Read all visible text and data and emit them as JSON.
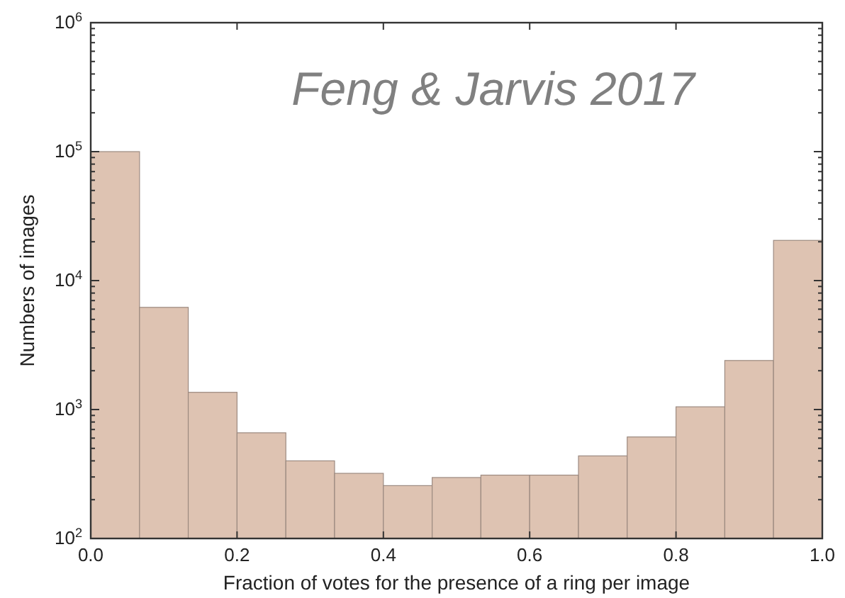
{
  "chart_data": {
    "type": "histogram",
    "xlabel": "Fraction of votes for the presence of a ring per image",
    "ylabel": "Numbers of images",
    "annotations": [
      "Feng & Jarvis 2017"
    ],
    "bins": [
      0,
      0.0667,
      0.1333,
      0.2,
      0.2667,
      0.3333,
      0.4,
      0.4667,
      0.5333,
      0.6,
      0.6667,
      0.7333,
      0.8,
      0.8667,
      0.9333,
      1
    ],
    "values": [
      100000,
      6200,
      1360,
      660,
      400,
      320,
      257,
      297,
      310,
      310,
      437,
      613,
      1050,
      2400,
      20500
    ],
    "color": "#dec3b2",
    "log": true,
    "grid": false,
    "xlim": [
      0,
      1
    ],
    "xticks": [
      {
        "value": 0,
        "label": "0.0"
      },
      0.2,
      0.4,
      0.6,
      0.8,
      {
        "value": 1,
        "label": "1.0"
      }
    ],
    "ylim": [
      100,
      1000000
    ],
    "yticks": [
      {
        "value": 100,
        "label": "10$^{2}$"
      },
      {
        "value": 200,
        "label": null
      },
      {
        "value": 300,
        "label": null
      },
      {
        "value": 400,
        "label": null
      },
      {
        "value": 500,
        "label": null
      },
      {
        "value": 600,
        "label": null
      },
      {
        "value": 700,
        "label": null
      },
      {
        "value": 800,
        "label": null
      },
      {
        "value": 900,
        "label": null
      },
      {
        "value": 1000,
        "label": "10$^{3}$"
      },
      {
        "value": 2000,
        "label": null
      },
      {
        "value": 3000,
        "label": null
      },
      {
        "value": 4000,
        "label": null
      },
      {
        "value": 5000,
        "label": null
      },
      {
        "value": 6000,
        "label": null
      },
      {
        "value": 7000,
        "label": null
      },
      {
        "value": 8000,
        "label": null
      },
      {
        "value": 9000,
        "label": null
      },
      {
        "value": 10000,
        "label": "10$^{4}$"
      },
      {
        "value": 20000,
        "label": null
      },
      {
        "value": 30000,
        "label": null
      },
      {
        "value": 40000,
        "label": null
      },
      {
        "value": 50000,
        "label": null
      },
      {
        "value": 60000,
        "label": null
      },
      {
        "value": 70000,
        "label": null
      },
      {
        "value": 80000,
        "label": null
      },
      {
        "value": 90000,
        "label": null
      },
      {
        "value": 100000,
        "label": "10$^{5}$"
      },
      {
        "value": 200000,
        "label": null
      },
      {
        "value": 300000,
        "label": null
      },
      {
        "value": 400000,
        "label": null
      },
      {
        "value": 500000,
        "label": null
      },
      {
        "value": 600000,
        "label": null
      },
      {
        "value": 700000,
        "label": null
      },
      {
        "value": 800000,
        "label": null
      },
      {
        "value": 900000,
        "label": null
      },
      {
        "value": 1000000,
        "label": "10$^{6}$"
      }
    ]
  }
}
